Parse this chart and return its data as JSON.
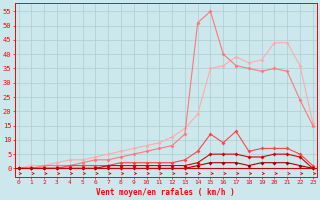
{
  "xlabel": "Vent moyen/en rafales ( km/h )",
  "background_color": "#cde8ec",
  "grid_color": "#aacdd2",
  "x_ticks": [
    0,
    1,
    2,
    3,
    4,
    5,
    6,
    7,
    8,
    9,
    10,
    11,
    12,
    13,
    14,
    15,
    16,
    17,
    18,
    19,
    20,
    21,
    22,
    23
  ],
  "ylim": [
    -3,
    58
  ],
  "xlim": [
    -0.3,
    23.3
  ],
  "yticks": [
    0,
    5,
    10,
    15,
    20,
    25,
    30,
    35,
    40,
    45,
    50,
    55
  ],
  "series1": [
    0,
    1,
    1,
    2,
    3,
    3,
    4,
    5,
    6,
    7,
    8,
    9,
    11,
    14,
    19,
    35,
    36,
    39,
    37,
    38,
    44,
    44,
    36,
    16
  ],
  "series2": [
    0,
    0,
    1,
    1,
    1,
    2,
    3,
    3,
    4,
    5,
    6,
    7,
    8,
    12,
    51,
    55,
    40,
    36,
    35,
    34,
    35,
    34,
    24,
    15
  ],
  "series3": [
    0,
    0,
    0,
    0,
    1,
    1,
    1,
    1,
    2,
    2,
    2,
    2,
    2,
    3,
    6,
    12,
    9,
    13,
    6,
    7,
    7,
    7,
    5,
    1
  ],
  "series4": [
    0,
    0,
    0,
    0,
    0,
    0,
    0,
    1,
    1,
    1,
    1,
    1,
    1,
    1,
    2,
    5,
    5,
    5,
    4,
    4,
    5,
    5,
    4,
    0
  ],
  "series5": [
    0,
    0,
    0,
    0,
    0,
    0,
    0,
    0,
    0,
    0,
    0,
    0,
    0,
    0,
    1,
    2,
    2,
    2,
    1,
    2,
    2,
    2,
    1,
    0
  ],
  "col1": "#ffaaaa",
  "col2": "#ff7777",
  "col3": "#ff4444",
  "col4": "#dd0000",
  "col5": "#aa0000",
  "lw": 0.8,
  "ms": 2.0
}
